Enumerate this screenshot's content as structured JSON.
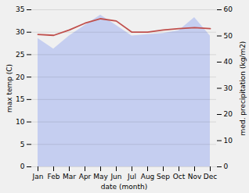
{
  "chart_data": {
    "type": "line",
    "categories": [
      "Jan",
      "Feb",
      "Mar",
      "Apr",
      "May",
      "Jun",
      "Jul",
      "Aug",
      "Sep",
      "Oct",
      "Nov",
      "Dec"
    ],
    "xlabel": "date (month)",
    "ylabel": "max temp (C)",
    "y2label": "med. precipitation (kg/m2)",
    "series": [
      {
        "type": "area",
        "color": "#c5cef0",
        "axis": "y2",
        "values": [
          49.0,
          45.0,
          50.0,
          54.0,
          58.0,
          54.0,
          50.0,
          50.5,
          51.0,
          52.0,
          57.0,
          50.0
        ]
      },
      {
        "type": "line",
        "color": "#c0504d",
        "values": [
          29.5,
          29.3,
          30.5,
          32.0,
          33.0,
          32.5,
          30.0,
          30.0,
          30.5,
          30.8,
          31.0,
          30.8
        ]
      }
    ],
    "ylim": [
      0,
      35
    ],
    "yticks": [
      0,
      5,
      10,
      15,
      20,
      25,
      30,
      35
    ],
    "y2lim": [
      0,
      60
    ],
    "y2ticks": [
      0,
      10,
      20,
      30,
      40,
      50,
      60
    ],
    "grid": true
  }
}
